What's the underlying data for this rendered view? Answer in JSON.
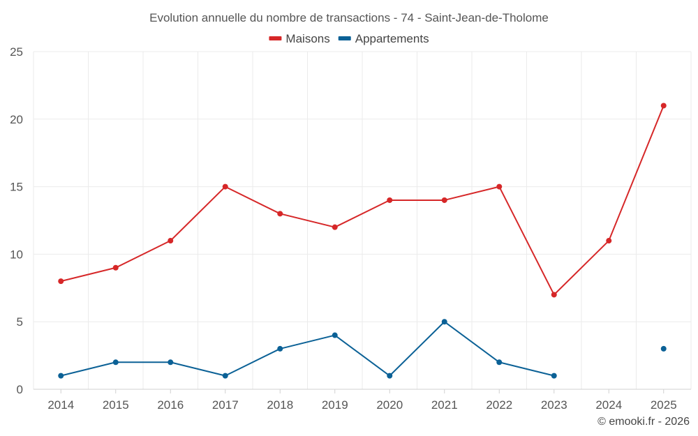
{
  "chart_data": {
    "type": "line",
    "title": "Evolution annuelle du nombre de transactions - 74 - Saint-Jean-de-Tholome",
    "categories": [
      "2014",
      "2015",
      "2016",
      "2017",
      "2018",
      "2019",
      "2020",
      "2021",
      "2022",
      "2023",
      "2024",
      "2025"
    ],
    "series": [
      {
        "name": "Maisons",
        "color": "#d62728",
        "values": [
          8,
          9,
          11,
          15,
          13,
          12,
          14,
          14,
          15,
          7,
          11,
          21
        ]
      },
      {
        "name": "Appartements",
        "color": "#0b6196",
        "values": [
          1,
          2,
          2,
          1,
          3,
          4,
          1,
          5,
          2,
          1,
          null,
          3
        ]
      }
    ],
    "ylim": [
      0,
      25
    ],
    "yticks": [
      0,
      5,
      10,
      15,
      20,
      25
    ],
    "grid": true,
    "legend_position": "top-center",
    "xlabel": "",
    "ylabel": ""
  },
  "credit": "© emooki.fr - 2026"
}
